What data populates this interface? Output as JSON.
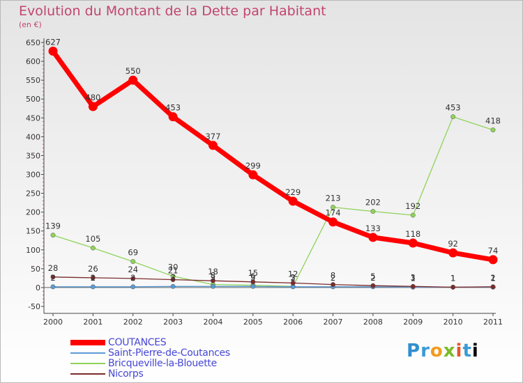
{
  "header": {
    "title": "Evolution du Montant de la Dette par Habitant",
    "unit": "(en €)"
  },
  "brand": {
    "logo_text": "Proxiti"
  },
  "chart_data": {
    "type": "line",
    "title": "Evolution du Montant de la Dette par Habitant",
    "subtitle": "(en €)",
    "xlabel": "",
    "ylabel": "",
    "x": [
      "2000",
      "2001",
      "2002",
      "2003",
      "2004",
      "2005",
      "2006",
      "2007",
      "2008",
      "2009",
      "2010",
      "2011"
    ],
    "ylim": [
      -50,
      650
    ],
    "yticks": [
      -50,
      0,
      50,
      100,
      150,
      200,
      250,
      300,
      350,
      400,
      450,
      500,
      550,
      600,
      650
    ],
    "grid": false,
    "legend_position": "bottom-left",
    "series": [
      {
        "name": "COUTANCES",
        "color": "#ff0000",
        "values": [
          627,
          480,
          550,
          453,
          377,
          299,
          229,
          174,
          133,
          118,
          92,
          74
        ]
      },
      {
        "name": "Saint-Pierre-de-Coutances",
        "color": "#5b9bd5",
        "values": [
          2,
          2,
          2,
          3,
          3,
          3,
          2,
          2,
          2,
          1,
          1,
          1
        ]
      },
      {
        "name": "Bricqueville-la-Blouette",
        "color": "#8fd35a",
        "values": [
          139,
          105,
          69,
          30,
          8,
          6,
          3,
          213,
          202,
          192,
          453,
          418
        ]
      },
      {
        "name": "Nicorps",
        "color": "#7b2b2b",
        "values": [
          28,
          26,
          24,
          21,
          18,
          15,
          12,
          8,
          5,
          3,
          1,
          2
        ]
      }
    ]
  }
}
